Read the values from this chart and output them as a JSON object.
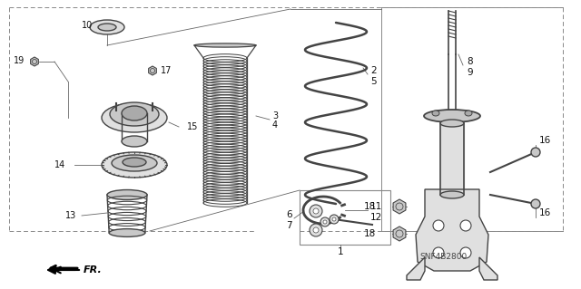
{
  "fig_width": 6.4,
  "fig_height": 3.19,
  "dpi": 100,
  "background_color": "#ffffff",
  "border_color": "#888888",
  "label_color": "#111111",
  "connector_color": "#666666",
  "part_color": "#444444",
  "fill_light": "#e0e0e0",
  "fill_mid": "#c8c8c8",
  "fill_dark": "#aaaaaa",
  "fr_label": "FR."
}
